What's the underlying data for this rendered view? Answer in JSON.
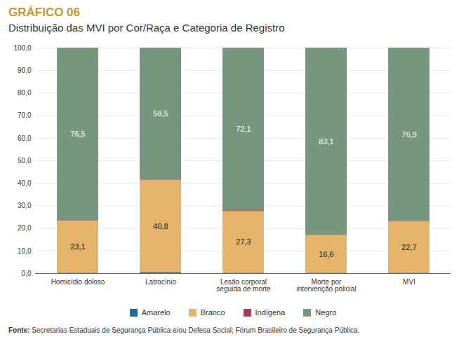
{
  "chart_data": {
    "type": "bar",
    "title": "GRÁFICO 06",
    "subtitle": "Distribuição das MVI por Cor/Raça e Categoria de Registro",
    "caption": "Fonte: Secretarias Estaduais de Segurança Pública e/ou Defesa Social; Fórum Brasileiro de Segurança Pública.",
    "categories": [
      "Homicídio doloso",
      "Latrocínio",
      "Lesão corporal\nseguida de morte",
      "Morte por\nintervenção policial",
      "MVI"
    ],
    "series": [
      {
        "name": "Amarelo",
        "color": "#1b6f9a",
        "values": [
          0.2,
          0.5,
          0.2,
          0.2,
          0.2
        ],
        "data_labels": false
      },
      {
        "name": "Branco",
        "color": "#e3b46a",
        "values": [
          23.1,
          40.8,
          27.3,
          16.6,
          22.7
        ],
        "data_labels": true,
        "value_labels": [
          "23,1",
          "40,8",
          "27,3",
          "16,6",
          "22,7"
        ]
      },
      {
        "name": "Indígena",
        "color": "#b03a4e",
        "values": [
          0.2,
          0.2,
          0.4,
          0.1,
          0.2
        ],
        "data_labels": false
      },
      {
        "name": "Negro",
        "color": "#76977e",
        "values": [
          76.5,
          58.5,
          72.1,
          83.1,
          76.9
        ],
        "data_labels": true,
        "value_labels": [
          "76,5",
          "58,5",
          "72,1",
          "83,1",
          "76,9"
        ]
      }
    ],
    "stacked": true,
    "ylim": [
      0,
      100
    ],
    "yticks": [
      {
        "value": 0,
        "label": "0,0"
      },
      {
        "value": 10,
        "label": "10,0"
      },
      {
        "value": 20,
        "label": "20,0"
      },
      {
        "value": 30,
        "label": "30,0"
      },
      {
        "value": 40,
        "label": "40,0"
      },
      {
        "value": 50,
        "label": "50,0"
      },
      {
        "value": 60,
        "label": "60,0"
      },
      {
        "value": 70,
        "label": "70,0"
      },
      {
        "value": 80,
        "label": "80,0"
      },
      {
        "value": 90,
        "label": "90,0"
      },
      {
        "value": 100,
        "label": "100,0"
      }
    ],
    "grid": true,
    "legend": "bottom"
  }
}
